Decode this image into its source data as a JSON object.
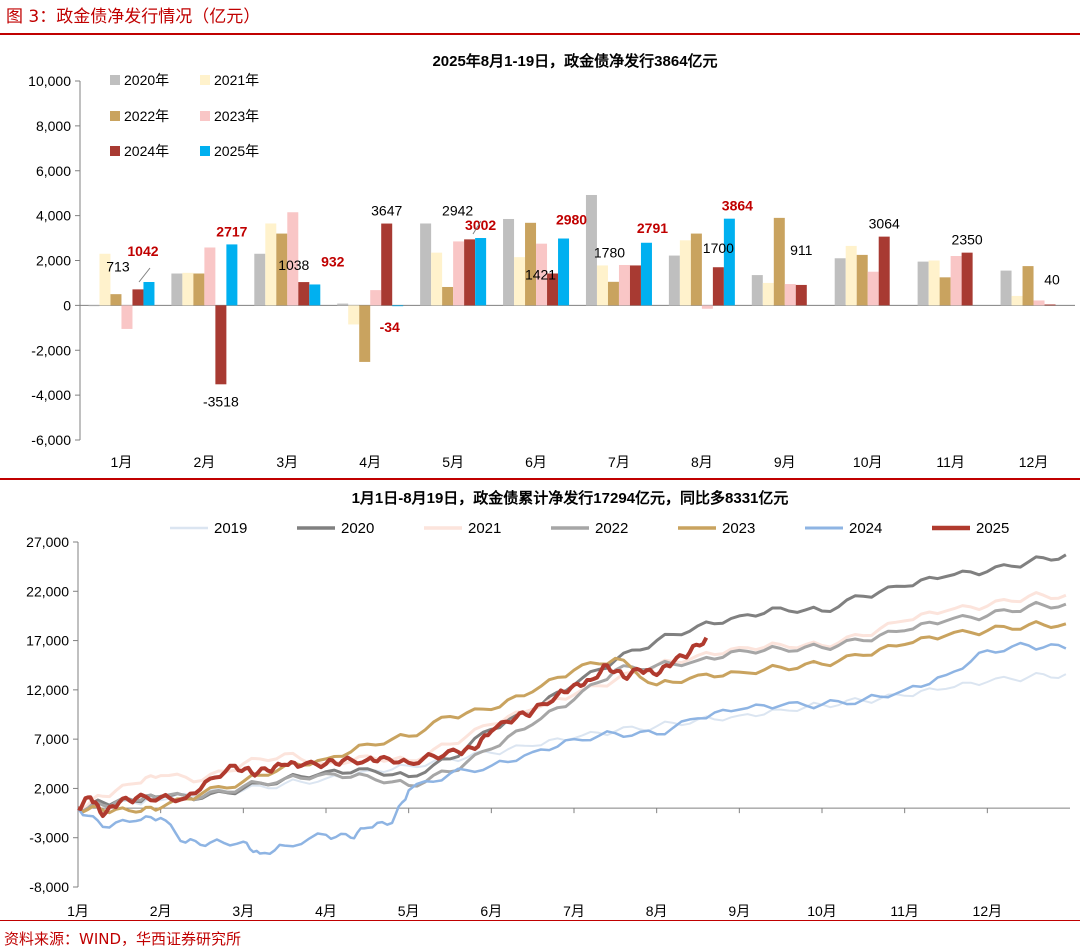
{
  "figure_title": "图 3：政金债净发行情况（亿元）",
  "source_note": "资料来源：WIND，华西证券研究所",
  "chart_data": [
    {
      "type": "bar",
      "title": "2025年8月1-19日，政金债净发行3864亿元",
      "categories": [
        "1月",
        "2月",
        "3月",
        "4月",
        "5月",
        "6月",
        "7月",
        "8月",
        "9月",
        "10月",
        "11月",
        "12月"
      ],
      "ylim": [
        -6000,
        10000
      ],
      "yticks": [
        -6000,
        -4000,
        -2000,
        0,
        2000,
        4000,
        6000,
        8000,
        10000
      ],
      "ytick_labels": [
        "-6,000",
        "-4,000",
        "-2,000",
        "0",
        "2,000",
        "4,000",
        "6,000",
        "8,000",
        "10,000"
      ],
      "legend_position": "top-left",
      "series": [
        {
          "name": "2020年",
          "color": "#bfbfbf",
          "values": [
            0,
            1420,
            2300,
            80,
            3650,
            3850,
            4920,
            2220,
            1350,
            2100,
            1950,
            1550
          ]
        },
        {
          "name": "2021年",
          "color": "#fff2cc",
          "values": [
            2300,
            1450,
            3650,
            -850,
            2350,
            2150,
            1780,
            2900,
            1000,
            2650,
            2000,
            420
          ]
        },
        {
          "name": "2022年",
          "color": "#c9a35f",
          "values": [
            500,
            1420,
            3200,
            -2520,
            820,
            3680,
            1050,
            3200,
            3900,
            2250,
            1250,
            1750
          ]
        },
        {
          "name": "2023年",
          "color": "#f9c6c6",
          "values": [
            -1050,
            2580,
            4150,
            680,
            2850,
            2750,
            1800,
            -150,
            950,
            1500,
            2200,
            220
          ]
        },
        {
          "name": "2024年",
          "color": "#a83a32",
          "values": [
            713,
            -3518,
            1038,
            3647,
            2942,
            1421,
            1780,
            1700,
            911,
            3064,
            2350,
            40
          ]
        },
        {
          "name": "2025年",
          "color": "#00b0f0",
          "values": [
            1042,
            2717,
            932,
            -34,
            3002,
            2980,
            2791,
            3864,
            null,
            null,
            null,
            null
          ]
        }
      ],
      "data_labels_2024": [
        "713",
        "-3518",
        "1038",
        "3647",
        "2942",
        "1421",
        "1780",
        "1700",
        "911",
        "3064",
        "2350",
        "40"
      ],
      "data_labels_2025": [
        "1042",
        "2717",
        "932",
        "-34",
        "3002",
        "2980",
        "2791",
        "3864"
      ]
    },
    {
      "type": "line",
      "title": "1月1日-8月19日，政金债累计净发行17294亿元，同比多8331亿元",
      "xlabels": [
        "1月",
        "2月",
        "3月",
        "4月",
        "5月",
        "6月",
        "7月",
        "8月",
        "9月",
        "10月",
        "11月",
        "12月"
      ],
      "ylim": [
        -8000,
        27000
      ],
      "yticks": [
        -8000,
        -3000,
        2000,
        7000,
        12000,
        17000,
        22000,
        27000
      ],
      "ytick_labels": [
        "-8,000",
        "-3,000",
        "2,000",
        "7,000",
        "12,000",
        "17,000",
        "22,000",
        "27,000"
      ],
      "legend_position": "top",
      "series": [
        {
          "name": "2019",
          "color": "#dbe5f1",
          "width": 2,
          "x": [
            1.0,
            1.3,
            1.7,
            2.0,
            2.5,
            3.0,
            3.5,
            4.0,
            4.5,
            5.0,
            5.5,
            6.0,
            6.5,
            7.0,
            7.5,
            8.0,
            8.5,
            9.0,
            9.5,
            10.0,
            10.5,
            11.0,
            11.5,
            12.0,
            12.5,
            12.95
          ],
          "y": [
            0,
            300,
            500,
            800,
            1500,
            1800,
            2500,
            3000,
            3800,
            4300,
            5000,
            5600,
            6300,
            7100,
            7800,
            8300,
            9000,
            9400,
            10000,
            10500,
            10900,
            11400,
            12100,
            12800,
            13300,
            13600
          ]
        },
        {
          "name": "2020",
          "color": "#808080",
          "width": 3,
          "x": [
            1.0,
            1.3,
            1.7,
            2.0,
            2.5,
            3.0,
            3.5,
            4.0,
            4.5,
            5.0,
            5.5,
            6.0,
            6.5,
            7.0,
            7.5,
            8.0,
            8.5,
            9.0,
            9.5,
            10.0,
            10.5,
            11.0,
            11.5,
            12.0,
            12.5,
            12.95
          ],
          "y": [
            0,
            600,
            700,
            1200,
            1000,
            2000,
            3000,
            3700,
            4000,
            3200,
            5000,
            8000,
            10000,
            12500,
            15000,
            17000,
            18500,
            19500,
            20300,
            20000,
            21500,
            22500,
            23500,
            24000,
            25000,
            25700
          ]
        },
        {
          "name": "2021",
          "color": "#fce4dc",
          "width": 3,
          "x": [
            1.0,
            1.3,
            1.7,
            2.0,
            2.5,
            3.0,
            3.5,
            4.0,
            4.5,
            5.0,
            5.5,
            6.0,
            6.5,
            7.0,
            7.5,
            8.0,
            8.5,
            9.0,
            9.5,
            10.0,
            10.5,
            11.0,
            11.5,
            12.0,
            12.5,
            12.95
          ],
          "y": [
            0,
            1200,
            2500,
            3300,
            2800,
            4500,
            5500,
            4500,
            5300,
            4800,
            6500,
            8500,
            10000,
            11500,
            13000,
            14500,
            15500,
            16300,
            16600,
            16500,
            17500,
            19000,
            20000,
            20500,
            21500,
            21600
          ]
        },
        {
          "name": "2022",
          "color": "#a6a6a6",
          "width": 3,
          "x": [
            1.0,
            1.3,
            1.7,
            2.0,
            2.5,
            3.0,
            3.5,
            4.0,
            4.5,
            5.0,
            5.5,
            6.0,
            6.5,
            7.0,
            7.5,
            8.0,
            8.5,
            9.0,
            9.5,
            10.0,
            10.5,
            11.0,
            11.5,
            12.0,
            12.5,
            12.95
          ],
          "y": [
            0,
            300,
            800,
            1200,
            1100,
            2200,
            3000,
            3500,
            3300,
            2300,
            3700,
            6000,
            8500,
            11000,
            14000,
            14500,
            15000,
            16000,
            16200,
            16300,
            17000,
            18000,
            19000,
            19500,
            20500,
            20700
          ]
        },
        {
          "name": "2023",
          "color": "#c9a35f",
          "width": 3,
          "x": [
            1.0,
            1.3,
            1.7,
            2.0,
            2.5,
            3.0,
            3.5,
            4.0,
            4.5,
            5.0,
            5.5,
            6.0,
            6.5,
            7.0,
            7.5,
            8.0,
            8.5,
            9.0,
            9.5,
            10.0,
            10.5,
            11.0,
            11.5,
            12.0,
            12.5,
            12.95
          ],
          "y": [
            0,
            -200,
            -400,
            0,
            1500,
            2700,
            4300,
            5000,
            6500,
            7300,
            9300,
            10000,
            11800,
            14000,
            15200,
            12500,
            13500,
            13800,
            14300,
            14600,
            15500,
            16600,
            17500,
            18000,
            18600,
            18700
          ]
        },
        {
          "name": "2024",
          "color": "#8eb4e3",
          "width": 2.5,
          "x": [
            1.0,
            1.3,
            1.7,
            2.0,
            2.3,
            2.6,
            3.0,
            3.2,
            3.5,
            4.0,
            4.3,
            4.5,
            4.8,
            5.0,
            5.5,
            6.0,
            6.5,
            7.0,
            7.5,
            8.0,
            8.5,
            9.0,
            9.5,
            10.0,
            10.5,
            11.0,
            11.5,
            12.0,
            12.5,
            12.95
          ],
          "y": [
            0,
            -1900,
            -1300,
            -1000,
            -3500,
            -3500,
            -3400,
            -4600,
            -3800,
            -2700,
            -3000,
            -2000,
            -1500,
            1800,
            3500,
            4300,
            5700,
            7000,
            7600,
            7500,
            9100,
            10000,
            10400,
            10500,
            11000,
            12000,
            13500,
            16000,
            16500,
            16200
          ]
        },
        {
          "name": "2025",
          "color": "#b03a2e",
          "width": 4,
          "x": [
            1.0,
            1.15,
            1.3,
            1.5,
            1.7,
            2.0,
            2.3,
            2.6,
            2.9,
            3.1,
            3.3,
            3.5,
            3.7,
            4.0,
            4.2,
            4.5,
            4.7,
            5.0,
            5.3,
            5.6,
            5.8,
            6.0,
            6.3,
            6.5,
            6.8,
            7.0,
            7.2,
            7.4,
            7.6,
            7.8,
            8.0,
            8.2,
            8.4,
            8.6
          ],
          "y": [
            0,
            1100,
            -800,
            600,
            1000,
            1100,
            1000,
            3000,
            4300,
            3600,
            3800,
            4400,
            4300,
            4500,
            4800,
            4900,
            5200,
            4600,
            5300,
            5700,
            6000,
            7800,
            9200,
            9800,
            11500,
            12500,
            13000,
            14500,
            13300,
            14000,
            13500,
            14800,
            15800,
            17294
          ]
        }
      ]
    }
  ]
}
